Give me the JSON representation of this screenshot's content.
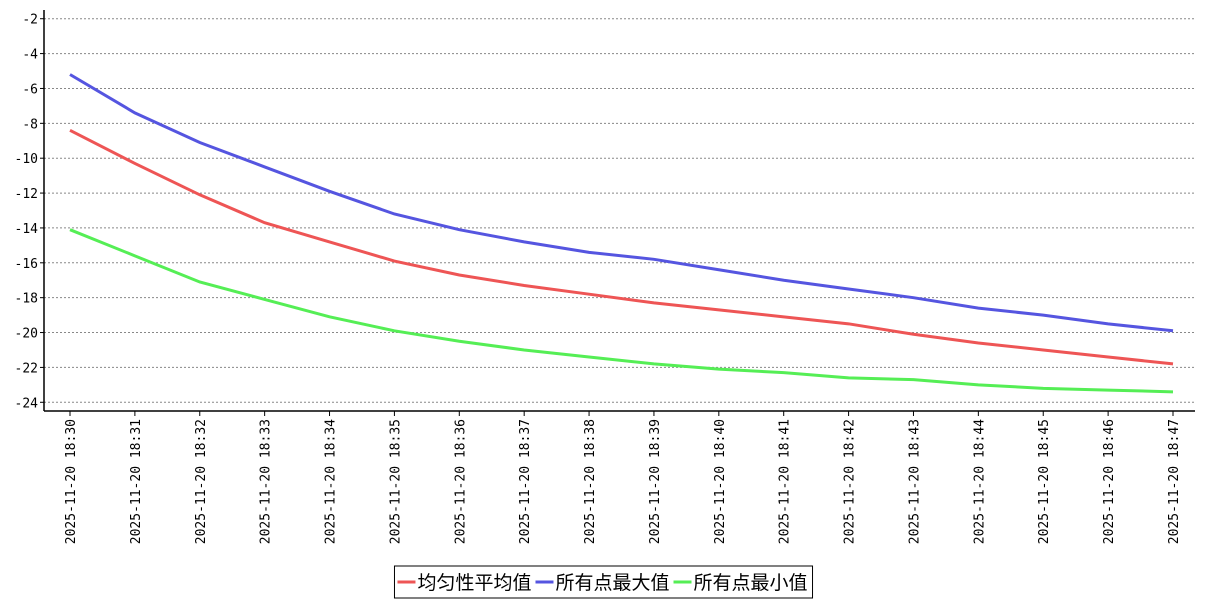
{
  "chart_data": {
    "type": "line",
    "categories": [
      "2025-11-20 18:30",
      "2025-11-20 18:31",
      "2025-11-20 18:32",
      "2025-11-20 18:33",
      "2025-11-20 18:34",
      "2025-11-20 18:35",
      "2025-11-20 18:36",
      "2025-11-20 18:37",
      "2025-11-20 18:38",
      "2025-11-20 18:39",
      "2025-11-20 18:40",
      "2025-11-20 18:41",
      "2025-11-20 18:42",
      "2025-11-20 18:43",
      "2025-11-20 18:44",
      "2025-11-20 18:45",
      "2025-11-20 18:46",
      "2025-11-20 18:47"
    ],
    "series": [
      {
        "name": "均匀性平均值",
        "color": "#ee5555",
        "values": [
          -8.4,
          -10.3,
          -12.1,
          -13.7,
          -14.8,
          -15.9,
          -16.7,
          -17.3,
          -17.8,
          -18.3,
          -18.7,
          -19.1,
          -19.5,
          -20.1,
          -20.6,
          -21.0,
          -21.4,
          -21.8
        ]
      },
      {
        "name": "所有点最大值",
        "color": "#5555e0",
        "values": [
          -5.2,
          -7.4,
          -9.1,
          -10.5,
          -11.9,
          -13.2,
          -14.1,
          -14.8,
          -15.4,
          -15.8,
          -16.4,
          -17.0,
          -17.5,
          -18.0,
          -18.6,
          -19.0,
          -19.5,
          -19.9
        ]
      },
      {
        "name": "所有点最小值",
        "color": "#55ee55",
        "values": [
          -14.1,
          -15.6,
          -17.1,
          -18.1,
          -19.1,
          -19.9,
          -20.5,
          -21.0,
          -21.4,
          -21.8,
          -22.1,
          -22.3,
          -22.6,
          -22.7,
          -23.0,
          -23.2,
          -23.3,
          -23.4
        ]
      }
    ],
    "ylim": [
      -24.5,
      -1.5
    ],
    "yticks": [
      -2,
      -4,
      -6,
      -8,
      -10,
      -12,
      -14,
      -16,
      -18,
      -20,
      -22,
      -24
    ],
    "grid": true,
    "legend": "bottom"
  }
}
